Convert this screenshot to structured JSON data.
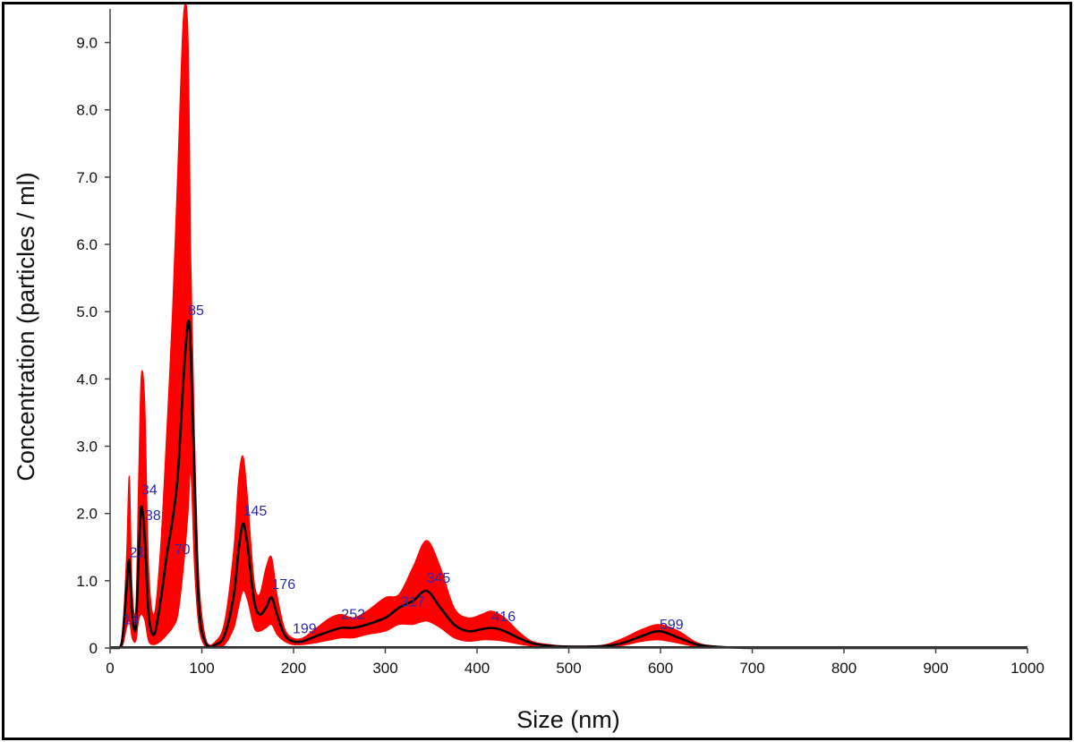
{
  "chart_data": {
    "type": "line",
    "xlabel": "Size (nm)",
    "ylabel": "Concentration (particles / ml)",
    "xlim": [
      0,
      1000
    ],
    "ylim": [
      0,
      9.5
    ],
    "x_ticks": [
      "0",
      "100",
      "200",
      "300",
      "400",
      "500",
      "600",
      "700",
      "800",
      "900",
      "1000"
    ],
    "y_ticks": [
      "0",
      "1.0",
      "2.0",
      "3.0",
      "4.0",
      "5.0",
      "6.0",
      "7.0",
      "8.0",
      "9.0"
    ],
    "x_tick_values": [
      0,
      100,
      200,
      300,
      400,
      500,
      600,
      700,
      800,
      900,
      1000
    ],
    "y_tick_values": [
      0,
      1,
      2,
      3,
      4,
      5,
      6,
      7,
      8,
      9
    ],
    "colors": {
      "band": "#ff0000",
      "mean_line": "#000000",
      "peak_labels": "#2a2aa8"
    },
    "series": [
      {
        "x": [
          0,
          10,
          14,
          18,
          21,
          24,
          28,
          31,
          34,
          38,
          42,
          48,
          55,
          62,
          68,
          74,
          80,
          85,
          88,
          92,
          97,
          105,
          115,
          125,
          135,
          140,
          145,
          150,
          157,
          163,
          170,
          176,
          182,
          190,
          199,
          210,
          225,
          240,
          252,
          265,
          280,
          300,
          315,
          330,
          345,
          360,
          375,
          390,
          405,
          416,
          430,
          445,
          460,
          480,
          500,
          520,
          540,
          560,
          580,
          599,
          620,
          640,
          660,
          700,
          800,
          900,
          1000
        ],
        "values": [
          0,
          0,
          0.2,
          0.9,
          1.3,
          0.5,
          0.3,
          1.3,
          2.1,
          1.6,
          0.5,
          0.2,
          0.7,
          1.4,
          1.9,
          2.6,
          4.0,
          4.85,
          4.4,
          2.5,
          0.6,
          0.05,
          0.05,
          0.2,
          0.8,
          1.45,
          1.85,
          1.5,
          0.7,
          0.5,
          0.6,
          0.75,
          0.5,
          0.2,
          0.1,
          0.1,
          0.18,
          0.25,
          0.3,
          0.3,
          0.35,
          0.45,
          0.6,
          0.7,
          0.85,
          0.6,
          0.35,
          0.25,
          0.28,
          0.3,
          0.25,
          0.15,
          0.07,
          0.03,
          0.02,
          0.02,
          0.03,
          0.08,
          0.18,
          0.25,
          0.15,
          0.05,
          0.02,
          0,
          0,
          0,
          0
        ]
      },
      {
        "x": [
          0,
          10,
          14,
          18,
          21,
          24,
          28,
          31,
          34,
          38,
          42,
          48,
          55,
          62,
          68,
          74,
          80,
          85,
          88,
          92,
          97,
          105,
          115,
          125,
          135,
          140,
          145,
          150,
          157,
          163,
          170,
          176,
          182,
          190,
          199,
          210,
          225,
          240,
          252,
          265,
          280,
          300,
          315,
          330,
          345,
          360,
          375,
          390,
          405,
          416,
          430,
          445,
          460,
          480,
          500,
          520,
          540,
          560,
          580,
          599,
          620,
          640,
          660,
          700,
          800,
          900,
          1000
        ],
        "values": [
          0,
          0,
          0.35,
          1.4,
          2.55,
          0.9,
          0.6,
          2.5,
          4.05,
          3.6,
          1.2,
          0.5,
          1.5,
          3.3,
          5.0,
          7.2,
          9.4,
          9.1,
          5.8,
          3.2,
          1.0,
          0.1,
          0.1,
          0.4,
          1.5,
          2.5,
          2.85,
          2.2,
          1.0,
          0.8,
          1.2,
          1.35,
          0.8,
          0.3,
          0.15,
          0.15,
          0.3,
          0.45,
          0.5,
          0.45,
          0.55,
          0.75,
          0.8,
          1.2,
          1.6,
          1.2,
          0.6,
          0.45,
          0.5,
          0.55,
          0.45,
          0.25,
          0.1,
          0.05,
          0.03,
          0.03,
          0.05,
          0.15,
          0.28,
          0.35,
          0.25,
          0.08,
          0.03,
          0,
          0,
          0,
          0
        ]
      },
      {
        "x": [
          0,
          10,
          14,
          18,
          21,
          24,
          28,
          31,
          34,
          38,
          42,
          48,
          55,
          62,
          68,
          74,
          80,
          85,
          88,
          92,
          97,
          105,
          115,
          125,
          135,
          140,
          145,
          150,
          157,
          163,
          170,
          176,
          182,
          190,
          199,
          210,
          225,
          240,
          252,
          265,
          280,
          300,
          315,
          330,
          345,
          360,
          375,
          390,
          405,
          416,
          430,
          445,
          460,
          480,
          500,
          520,
          540,
          560,
          580,
          599,
          620,
          640,
          660,
          700,
          800,
          900,
          1000
        ],
        "values": [
          0,
          0,
          0.05,
          0.3,
          0.4,
          0.15,
          0.1,
          0.4,
          0.5,
          0.4,
          0.1,
          0.05,
          0.1,
          0.2,
          0.3,
          0.5,
          1.2,
          2.0,
          2.6,
          1.2,
          0.3,
          0,
          0,
          0.05,
          0.3,
          0.6,
          0.85,
          0.7,
          0.3,
          0.25,
          0.3,
          0.35,
          0.2,
          0.1,
          0.05,
          0.05,
          0.08,
          0.12,
          0.15,
          0.15,
          0.2,
          0.25,
          0.35,
          0.35,
          0.4,
          0.3,
          0.15,
          0.1,
          0.12,
          0.12,
          0.1,
          0.06,
          0.03,
          0.01,
          0.01,
          0.01,
          0.01,
          0.04,
          0.1,
          0.12,
          0.07,
          0.02,
          0.01,
          0,
          0,
          0,
          0
        ]
      }
    ],
    "peak_labels": [
      {
        "text": "14",
        "x": 14,
        "y": 0.35
      },
      {
        "text": "21",
        "x": 21,
        "y": 1.35
      },
      {
        "text": "34",
        "x": 34,
        "y": 2.28
      },
      {
        "text": "38",
        "x": 38,
        "y": 1.9
      },
      {
        "text": "70",
        "x": 70,
        "y": 1.4
      },
      {
        "text": "85",
        "x": 85,
        "y": 4.95
      },
      {
        "text": "145",
        "x": 145,
        "y": 1.97
      },
      {
        "text": "176",
        "x": 176,
        "y": 0.88
      },
      {
        "text": "199",
        "x": 199,
        "y": 0.22
      },
      {
        "text": "252",
        "x": 252,
        "y": 0.43
      },
      {
        "text": "317",
        "x": 317,
        "y": 0.62
      },
      {
        "text": "345",
        "x": 345,
        "y": 0.97
      },
      {
        "text": "416",
        "x": 416,
        "y": 0.4
      },
      {
        "text": "599",
        "x": 599,
        "y": 0.28
      }
    ]
  }
}
